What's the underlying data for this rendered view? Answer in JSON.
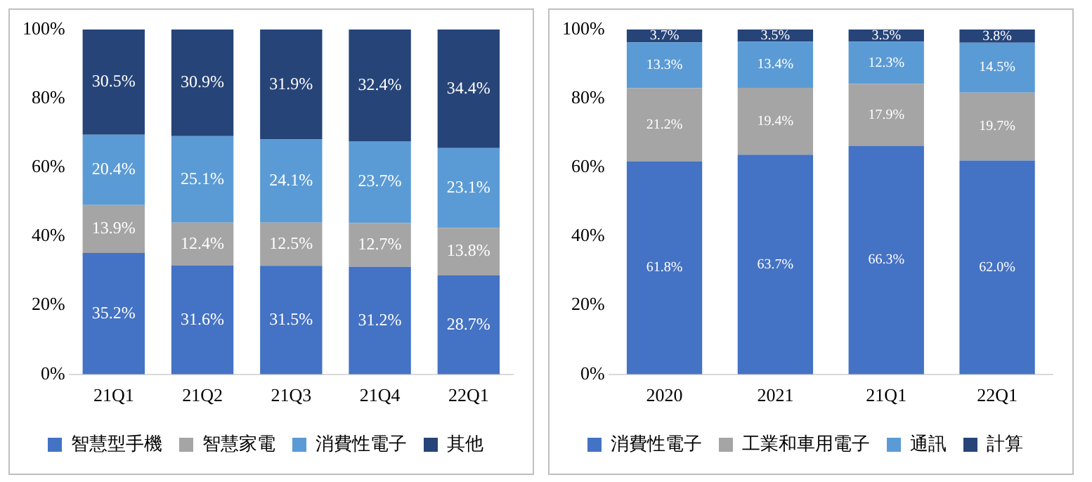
{
  "chart_data": [
    {
      "type": "bar",
      "stacked": true,
      "legend": "bottom",
      "categories": [
        "21Q1",
        "21Q2",
        "21Q3",
        "21Q4",
        "22Q1"
      ],
      "ylim": [
        0,
        100
      ],
      "yticks": [
        {
          "value": 0,
          "label": "0%"
        },
        {
          "value": 20,
          "label": "20%"
        },
        {
          "value": 40,
          "label": "40%"
        },
        {
          "value": 60,
          "label": "60%"
        },
        {
          "value": 80,
          "label": "80%"
        },
        {
          "value": 100,
          "label": "100%"
        }
      ],
      "series": [
        {
          "name": "智慧型手機",
          "color": "#4472c4",
          "values": [
            35.2,
            31.6,
            31.5,
            31.2,
            28.7
          ],
          "value_labels": [
            "35.2%",
            "31.6%",
            "31.5%",
            "31.2%",
            "28.7%"
          ]
        },
        {
          "name": "智慧家電",
          "color": "#a5a5a5",
          "values": [
            13.9,
            12.4,
            12.5,
            12.7,
            13.8
          ],
          "value_labels": [
            "13.9%",
            "12.4%",
            "12.5%",
            "12.7%",
            "13.8%"
          ]
        },
        {
          "name": "消費性電子",
          "color": "#5b9bd5",
          "values": [
            20.4,
            25.1,
            24.1,
            23.7,
            23.1
          ],
          "value_labels": [
            "20.4%",
            "25.1%",
            "24.1%",
            "23.7%",
            "23.1%"
          ]
        },
        {
          "name": "其他",
          "color": "#264478",
          "values": [
            30.5,
            30.9,
            31.9,
            32.4,
            34.4
          ],
          "value_labels": [
            "30.5%",
            "30.9%",
            "31.9%",
            "32.4%",
            "34.4%"
          ]
        }
      ]
    },
    {
      "type": "bar",
      "stacked": true,
      "legend": "bottom",
      "categories": [
        "2020",
        "2021",
        "21Q1",
        "22Q1"
      ],
      "ylim": [
        0,
        100
      ],
      "yticks": [
        {
          "value": 0,
          "label": "0%"
        },
        {
          "value": 20,
          "label": "20%"
        },
        {
          "value": 40,
          "label": "40%"
        },
        {
          "value": 60,
          "label": "60%"
        },
        {
          "value": 80,
          "label": "80%"
        },
        {
          "value": 100,
          "label": "100%"
        }
      ],
      "series": [
        {
          "name": "消費性電子",
          "color": "#4472c4",
          "values": [
            61.8,
            63.7,
            66.3,
            62.0
          ],
          "value_labels": [
            "61.8%",
            "63.7%",
            "66.3%",
            "62.0%"
          ]
        },
        {
          "name": "工業和車用電子",
          "color": "#a5a5a5",
          "values": [
            21.2,
            19.4,
            17.9,
            19.7
          ],
          "value_labels": [
            "21.2%",
            "19.4%",
            "17.9%",
            "19.7%"
          ]
        },
        {
          "name": "通訊",
          "color": "#5b9bd5",
          "values": [
            13.3,
            13.4,
            12.3,
            14.5
          ],
          "value_labels": [
            "13.3%",
            "13.4%",
            "12.3%",
            "14.5%"
          ]
        },
        {
          "name": "計算",
          "color": "#264478",
          "values": [
            3.7,
            3.5,
            3.5,
            3.8
          ],
          "value_labels": [
            "3.7%",
            "3.5%",
            "3.5%",
            "3.8%"
          ]
        }
      ]
    }
  ]
}
